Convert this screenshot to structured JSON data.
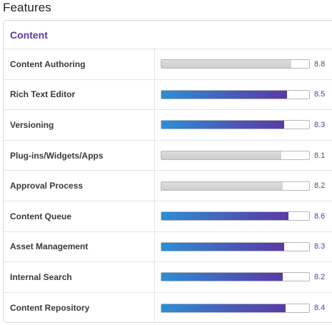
{
  "page": {
    "title": "Features"
  },
  "section": {
    "title": "Content"
  },
  "features": [
    {
      "label": "Content Authoring",
      "score": "8.8",
      "fraction": 0.88,
      "style": "gray"
    },
    {
      "label": "Rich Text Editor",
      "score": "8.5",
      "fraction": 0.85,
      "style": "grad"
    },
    {
      "label": "Versioning",
      "score": "8.3",
      "fraction": 0.83,
      "style": "grad"
    },
    {
      "label": "Plug-ins/Widgets/Apps",
      "score": "8.1",
      "fraction": 0.81,
      "style": "gray"
    },
    {
      "label": "Approval Process",
      "score": "8.2",
      "fraction": 0.82,
      "style": "gray"
    },
    {
      "label": "Content Queue",
      "score": "8.6",
      "fraction": 0.86,
      "style": "grad"
    },
    {
      "label": "Asset Management",
      "score": "8.3",
      "fraction": 0.83,
      "style": "grad"
    },
    {
      "label": "Internal Search",
      "score": "8.2",
      "fraction": 0.82,
      "style": "grad"
    },
    {
      "label": "Content Repository",
      "score": "8.4",
      "fraction": 0.84,
      "style": "grad"
    }
  ]
}
